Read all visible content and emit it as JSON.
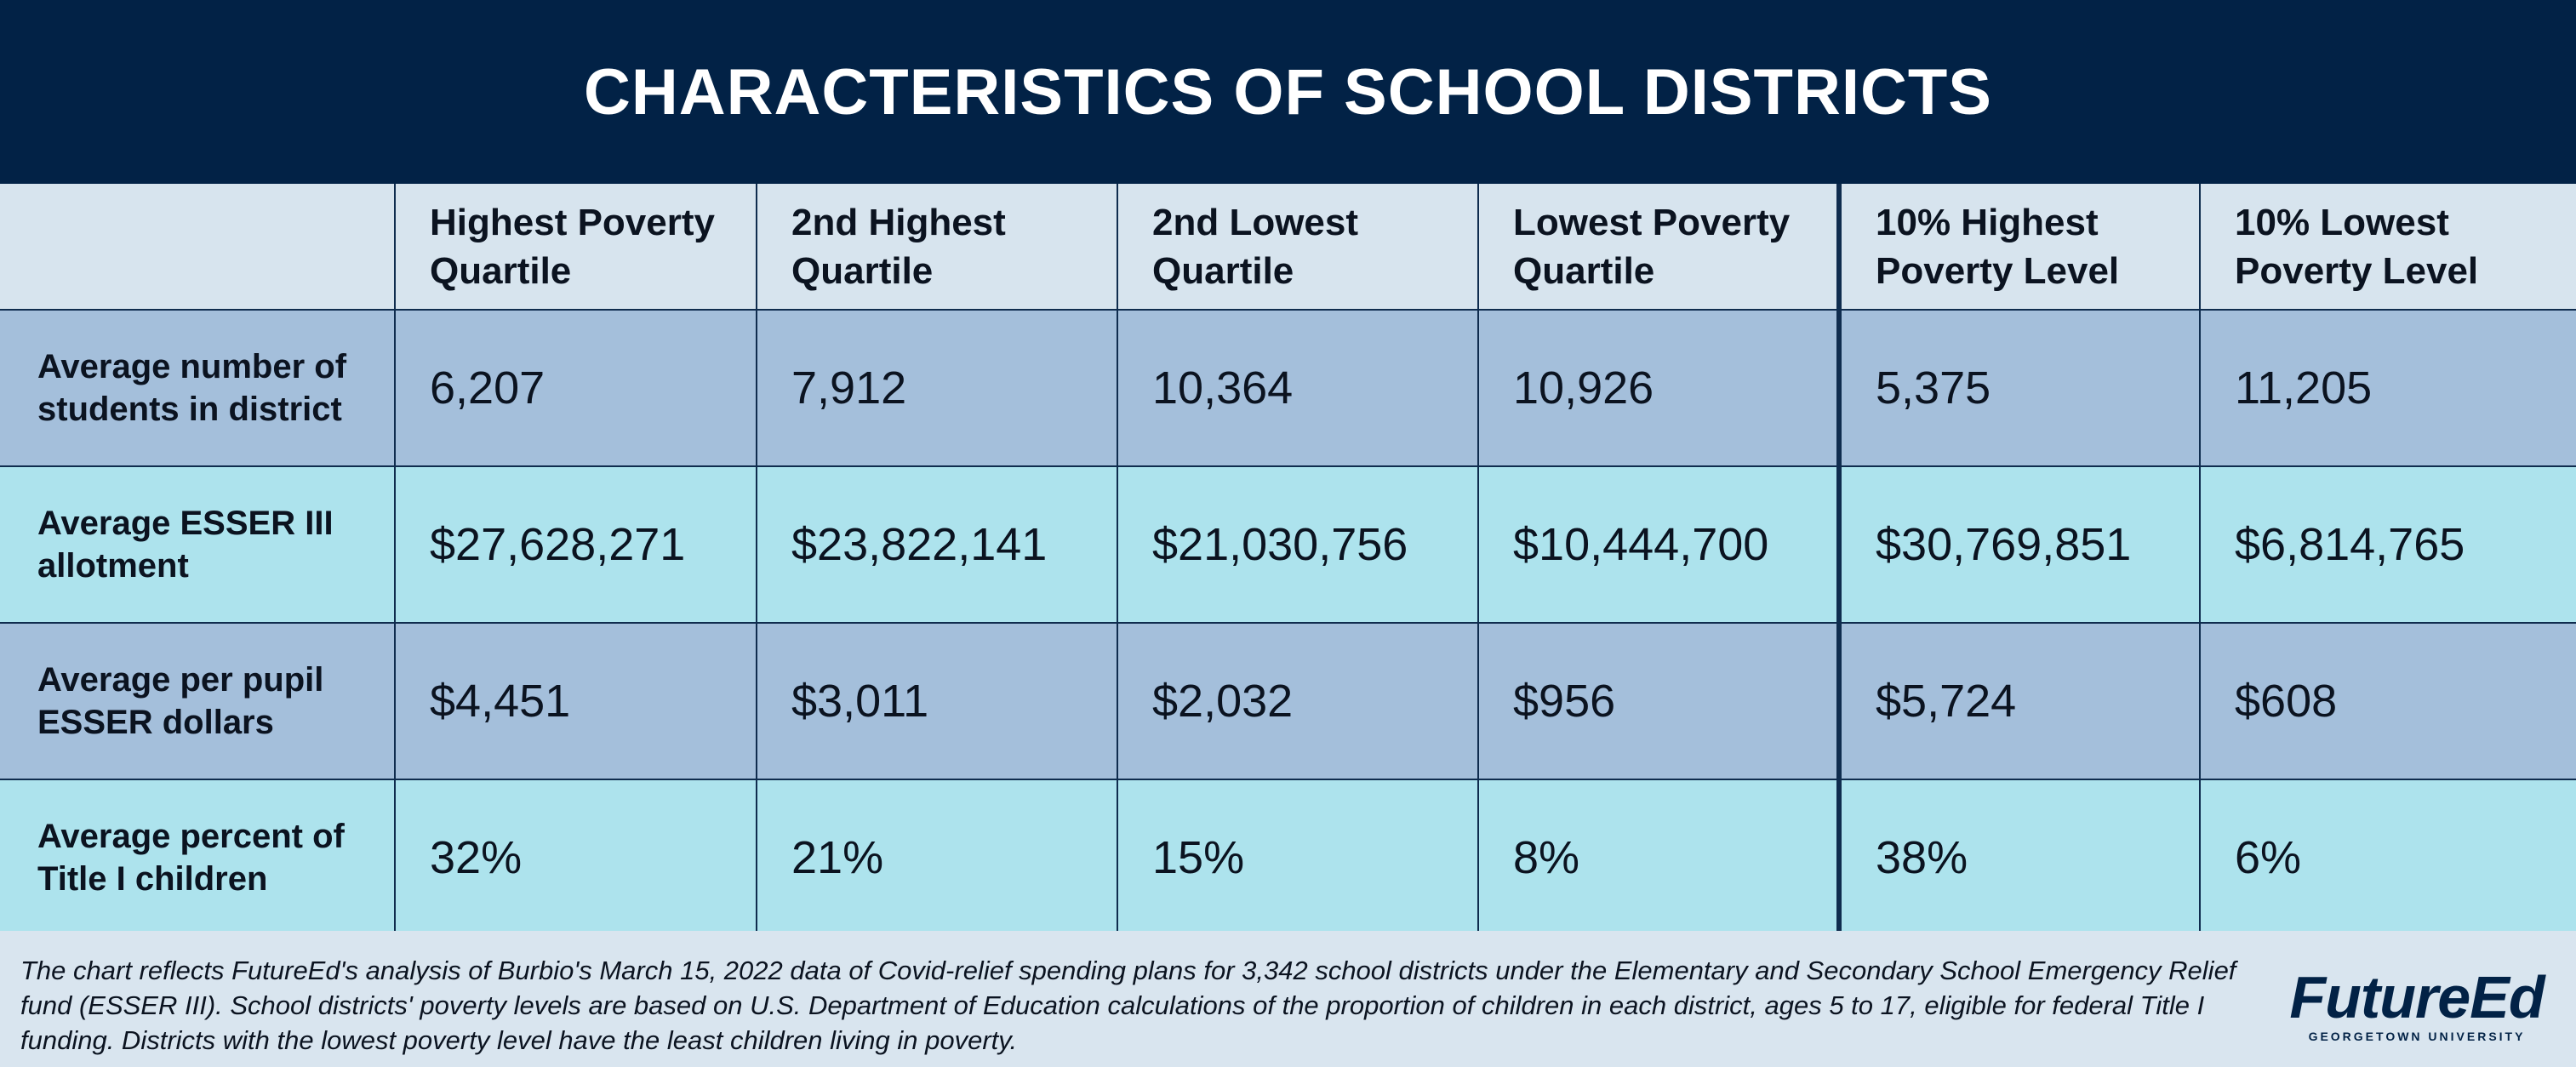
{
  "title": "CHARACTERISTICS OF SCHOOL DISTRICTS",
  "chart_data": {
    "type": "table",
    "title": "CHARACTERISTICS OF SCHOOL DISTRICTS",
    "columns": [
      "Highest Poverty Quartile",
      "2nd Highest Quartile",
      "2nd Lowest Quartile",
      "Lowest Poverty Quartile",
      "10% Highest Poverty Level",
      "10% Lowest Poverty Level"
    ],
    "rows": [
      {
        "label": "Average number of students in district",
        "values": [
          "6,207",
          "7,912",
          "10,364",
          "10,926",
          "5,375",
          "11,205"
        ]
      },
      {
        "label": "Average ESSER III allotment",
        "values": [
          "$27,628,271",
          "$23,822,141",
          "$21,030,756",
          "$10,444,700",
          "$30,769,851",
          "$6,814,765"
        ]
      },
      {
        "label": "Average per pupil ESSER dollars",
        "values": [
          "$4,451",
          "$3,011",
          "$2,032",
          "$956",
          "$5,724",
          "$608"
        ]
      },
      {
        "label": "Average percent of Title I children",
        "values": [
          "32%",
          "21%",
          "15%",
          "8%",
          "38%",
          "6%"
        ]
      }
    ]
  },
  "footer": {
    "note": "The chart reflects FutureEd's analysis of Burbio's March 15, 2022 data of Covid-relief spending plans for 3,342 school districts under the Elementary and Secondary School Emergency Relief fund (ESSER III). School districts' poverty levels are based on U.S. Department of Education calculations of the proportion of children in each district, ages 5 to 17, eligible for federal Title I funding. Districts with the lowest poverty level have the least children living in poverty.",
    "logo_text": "FutureEd",
    "logo_subtext": "GEORGETOWN UNIVERSITY"
  },
  "colors": {
    "header_navy": "#022246",
    "row_blue": "#a4bfdb",
    "row_cyan": "#ade3ed",
    "header_row": "#d7e4ee",
    "grid_line": "#0f2c4e"
  }
}
